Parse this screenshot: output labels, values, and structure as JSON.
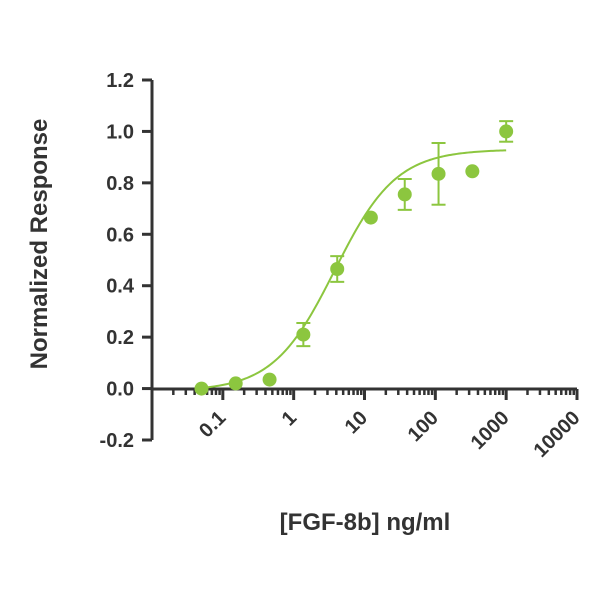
{
  "chart_data": {
    "type": "scatter",
    "title": "",
    "xlabel": "[FGF-8b] ng/ml",
    "ylabel": "Normalized Response",
    "xscale": "log",
    "xlim": [
      0.01,
      10000
    ],
    "ylim": [
      -0.2,
      1.2
    ],
    "xticks": [
      "0.1",
      "1",
      "10",
      "100",
      "1000",
      "10000"
    ],
    "yticks": [
      "-0.2",
      "0.0",
      "0.2",
      "0.4",
      "0.6",
      "0.8",
      "1.0",
      "1.2"
    ],
    "grid": false,
    "legend": "none",
    "color": "#8cc63f",
    "series": [
      {
        "x": [
          0.05,
          0.152,
          0.457,
          1.37,
          4.12,
          12.3,
          37.0,
          111,
          333,
          1000
        ],
        "y": [
          0.0,
          0.02,
          0.035,
          0.21,
          0.465,
          0.665,
          0.755,
          0.835,
          0.845,
          1.0
        ],
        "error": [
          0,
          0,
          0,
          0.045,
          0.05,
          0,
          0.06,
          0.12,
          0,
          0.04
        ]
      }
    ],
    "fit": {
      "type": "4PL",
      "bottom": -0.01,
      "top": 0.93,
      "ec50": 3.8,
      "hill": 1.0
    }
  }
}
